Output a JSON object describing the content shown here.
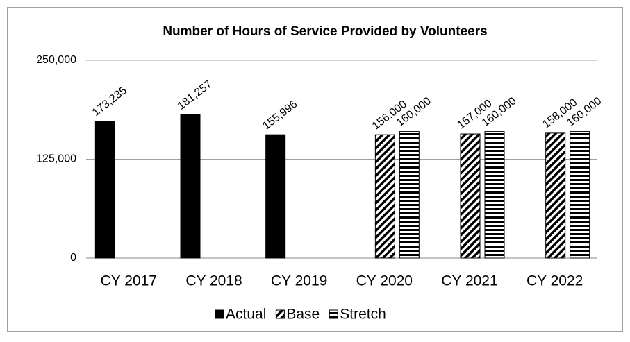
{
  "chart_data": {
    "type": "bar",
    "title": "Number of Hours of Service Provided by Volunteers",
    "categories": [
      "CY 2017",
      "CY 2018",
      "CY 2019",
      "CY 2020",
      "CY 2021",
      "CY 2022"
    ],
    "series": [
      {
        "name": "Actual",
        "color": "#000000",
        "pattern": "solid",
        "values": [
          173235,
          181257,
          155996,
          null,
          null,
          null
        ],
        "value_labels": [
          "173,235",
          "181,257",
          "155,996",
          null,
          null,
          null
        ]
      },
      {
        "name": "Base",
        "color": "#000000",
        "pattern": "diagonal",
        "values": [
          null,
          null,
          null,
          156000,
          157000,
          158000
        ],
        "value_labels": [
          null,
          null,
          null,
          "156,000",
          "157,000",
          "158,000"
        ]
      },
      {
        "name": "Stretch",
        "color": "#000000",
        "pattern": "horizontal",
        "values": [
          null,
          null,
          null,
          160000,
          160000,
          160000
        ],
        "value_labels": [
          null,
          null,
          null,
          "160,000",
          "160,000",
          "160,000"
        ]
      }
    ],
    "ylim": [
      0,
      250000
    ],
    "yticks": [
      0,
      {
        "value": 125000,
        "label": "125,000"
      },
      {
        "value": 250000,
        "label": "250,000"
      }
    ],
    "grid": true,
    "legend": "bottom"
  }
}
